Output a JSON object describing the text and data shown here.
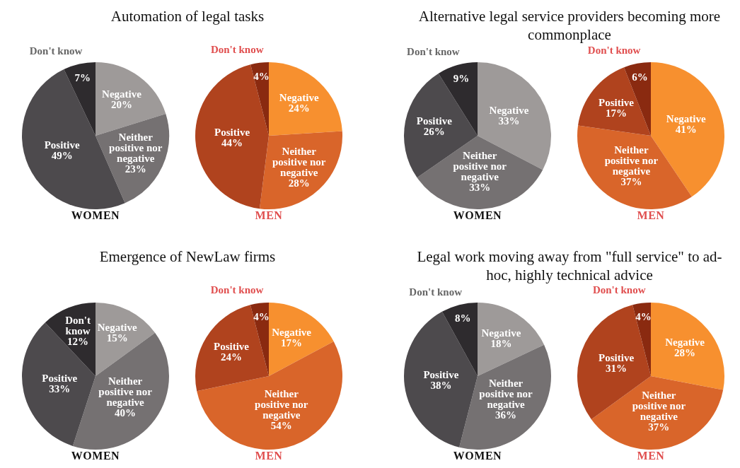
{
  "chart_data": [
    {
      "type": "pie",
      "title": "Automation of legal tasks",
      "xlabel": "WOMEN",
      "categories": [
        "Negative",
        "Neither positive nor negative",
        "Positive",
        "Don't know"
      ],
      "values": [
        20,
        23,
        49,
        7
      ],
      "colors": [
        "#9e9a99",
        "#757172",
        "#4d4a4d",
        "#2e2b2e"
      ],
      "value_labels": [
        "20%",
        "23%",
        "49%",
        "7%"
      ]
    },
    {
      "type": "pie",
      "xlabel": "MEN",
      "categories": [
        "Negative",
        "Neither positive nor negative",
        "Positive",
        "Don't know"
      ],
      "values": [
        24,
        28,
        44,
        4
      ],
      "colors": [
        "#f7902f",
        "#d9652a",
        "#b0431e",
        "#8a2a10"
      ],
      "value_labels": [
        "24%",
        "28%",
        "44%",
        "4%"
      ]
    },
    {
      "type": "pie",
      "title": "Alternative legal service providers becoming more commonplace",
      "xlabel": "WOMEN",
      "categories": [
        "Negative",
        "Neither positive nor negative",
        "Positive",
        "Don't know"
      ],
      "values": [
        33,
        33,
        26,
        9
      ],
      "colors": [
        "#9e9a99",
        "#757172",
        "#4d4a4d",
        "#2e2b2e"
      ],
      "value_labels": [
        "33%",
        "33%",
        "26%",
        "9%"
      ]
    },
    {
      "type": "pie",
      "xlabel": "MEN",
      "categories": [
        "Negative",
        "Neither positive nor negative",
        "Positive",
        "Don't know"
      ],
      "values": [
        41,
        37,
        17,
        6
      ],
      "colors": [
        "#f7902f",
        "#d9652a",
        "#b0431e",
        "#8a2a10"
      ],
      "value_labels": [
        "41%",
        "37%",
        "17%",
        "6%"
      ]
    },
    {
      "type": "pie",
      "title": "Emergence of NewLaw firms",
      "xlabel": "WOMEN",
      "categories": [
        "Negative",
        "Neither positive nor negative",
        "Positive",
        "Don't know"
      ],
      "values": [
        15,
        40,
        33,
        12
      ],
      "colors": [
        "#9e9a99",
        "#757172",
        "#4d4a4d",
        "#2e2b2e"
      ],
      "value_labels": [
        "15%",
        "40%",
        "33%",
        "12%"
      ]
    },
    {
      "type": "pie",
      "xlabel": "MEN",
      "categories": [
        "Negative",
        "Neither positive nor negative",
        "Positive",
        "Don't know"
      ],
      "values": [
        17,
        54,
        24,
        4
      ],
      "colors": [
        "#f7902f",
        "#d9652a",
        "#b0431e",
        "#8a2a10"
      ],
      "value_labels": [
        "17%",
        "54%",
        "24%",
        "4%"
      ]
    },
    {
      "type": "pie",
      "title": "Legal work moving away from \"full service\" to ad-hoc, highly technical advice",
      "xlabel": "WOMEN",
      "categories": [
        "Negative",
        "Neither positive nor negative",
        "Positive",
        "Don't know"
      ],
      "values": [
        18,
        36,
        38,
        8
      ],
      "colors": [
        "#9e9a99",
        "#757172",
        "#4d4a4d",
        "#2e2b2e"
      ],
      "value_labels": [
        "18%",
        "36%",
        "38%",
        "8%"
      ]
    },
    {
      "type": "pie",
      "xlabel": "MEN",
      "categories": [
        "Negative",
        "Neither positive nor negative",
        "Positive",
        "Don't know"
      ],
      "values": [
        28,
        37,
        31,
        4
      ],
      "colors": [
        "#f7902f",
        "#d9652a",
        "#b0431e",
        "#8a2a10"
      ],
      "value_labels": [
        "28%",
        "37%",
        "31%",
        "4%"
      ]
    }
  ]
}
